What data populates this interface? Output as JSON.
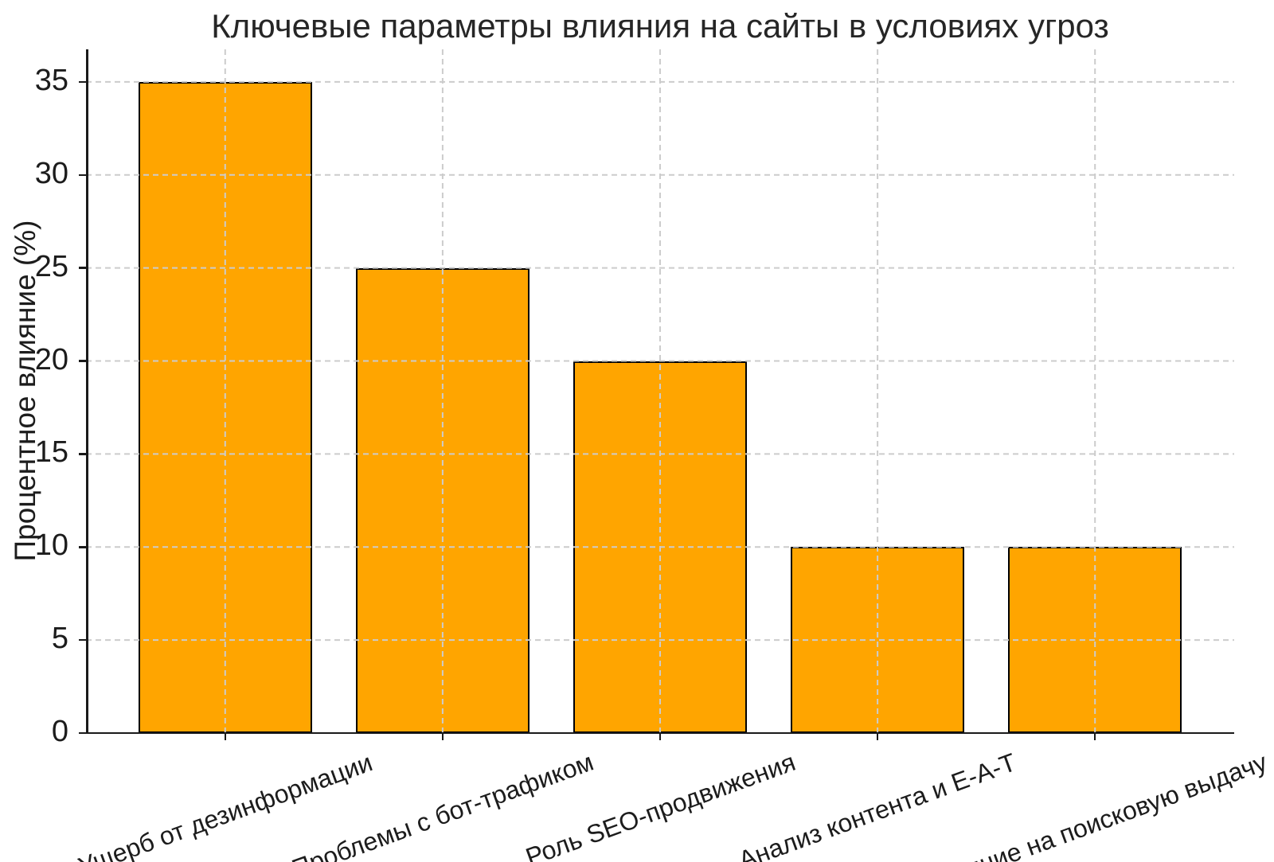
{
  "chart_data": {
    "type": "bar",
    "title": "Ключевые параметры влияния на сайты в условиях угроз",
    "xlabel": "",
    "ylabel": "Процентное влияние (%)",
    "categories": [
      "Ущерб от дезинформации",
      "Проблемы с бот-трафиком",
      "Роль SEO-продвижения",
      "Анализ контента и E-A-T",
      "Влияние на поисковую выдачу"
    ],
    "values": [
      35,
      25,
      20,
      10,
      10
    ],
    "ylim": [
      0,
      36.75
    ],
    "yticks": [
      0,
      5,
      10,
      15,
      20,
      25,
      30,
      35
    ],
    "x_tick_rotation_deg": 20,
    "bar_fill_color": "#FFA500",
    "bar_edge_color": "#000000",
    "grid": true,
    "grid_style": "dashed",
    "grid_color": "#cccccc",
    "axis_color": "#1a1a1a",
    "text_color": "#1c1c1c",
    "background_color": "#ffffff",
    "legend": false
  }
}
